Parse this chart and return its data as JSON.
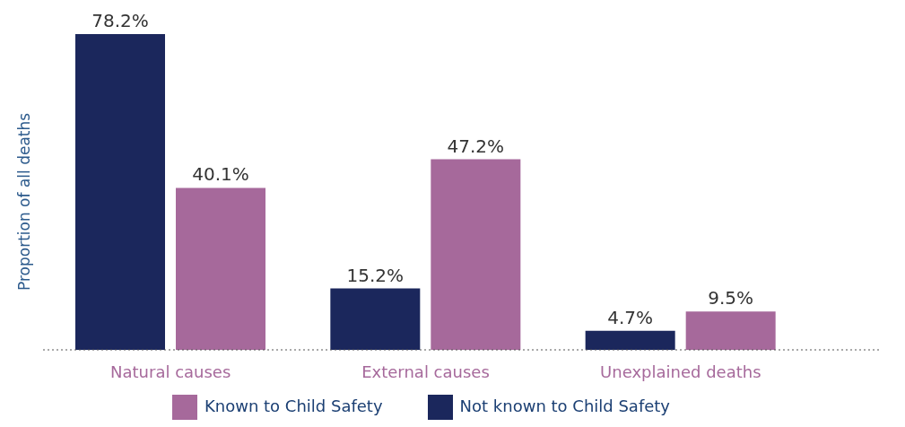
{
  "chart_data": {
    "type": "bar",
    "ylabel": "Proportion of all deaths",
    "categories": [
      "Natural causes",
      "External causes",
      "Unexplained deaths"
    ],
    "series": [
      {
        "name": "Not known to Child Safety",
        "color": "#1b275c",
        "values": [
          78.2,
          15.2,
          4.7
        ],
        "value_labels": [
          "78.2%",
          "15.2%",
          "4.7%"
        ]
      },
      {
        "name": "Known to Child Safety",
        "color": "#a6699b",
        "values": [
          40.1,
          47.2,
          9.5
        ],
        "value_labels": [
          "40.1%",
          "47.2%",
          "9.5%"
        ]
      }
    ],
    "legend": "bottom",
    "grid": false
  }
}
